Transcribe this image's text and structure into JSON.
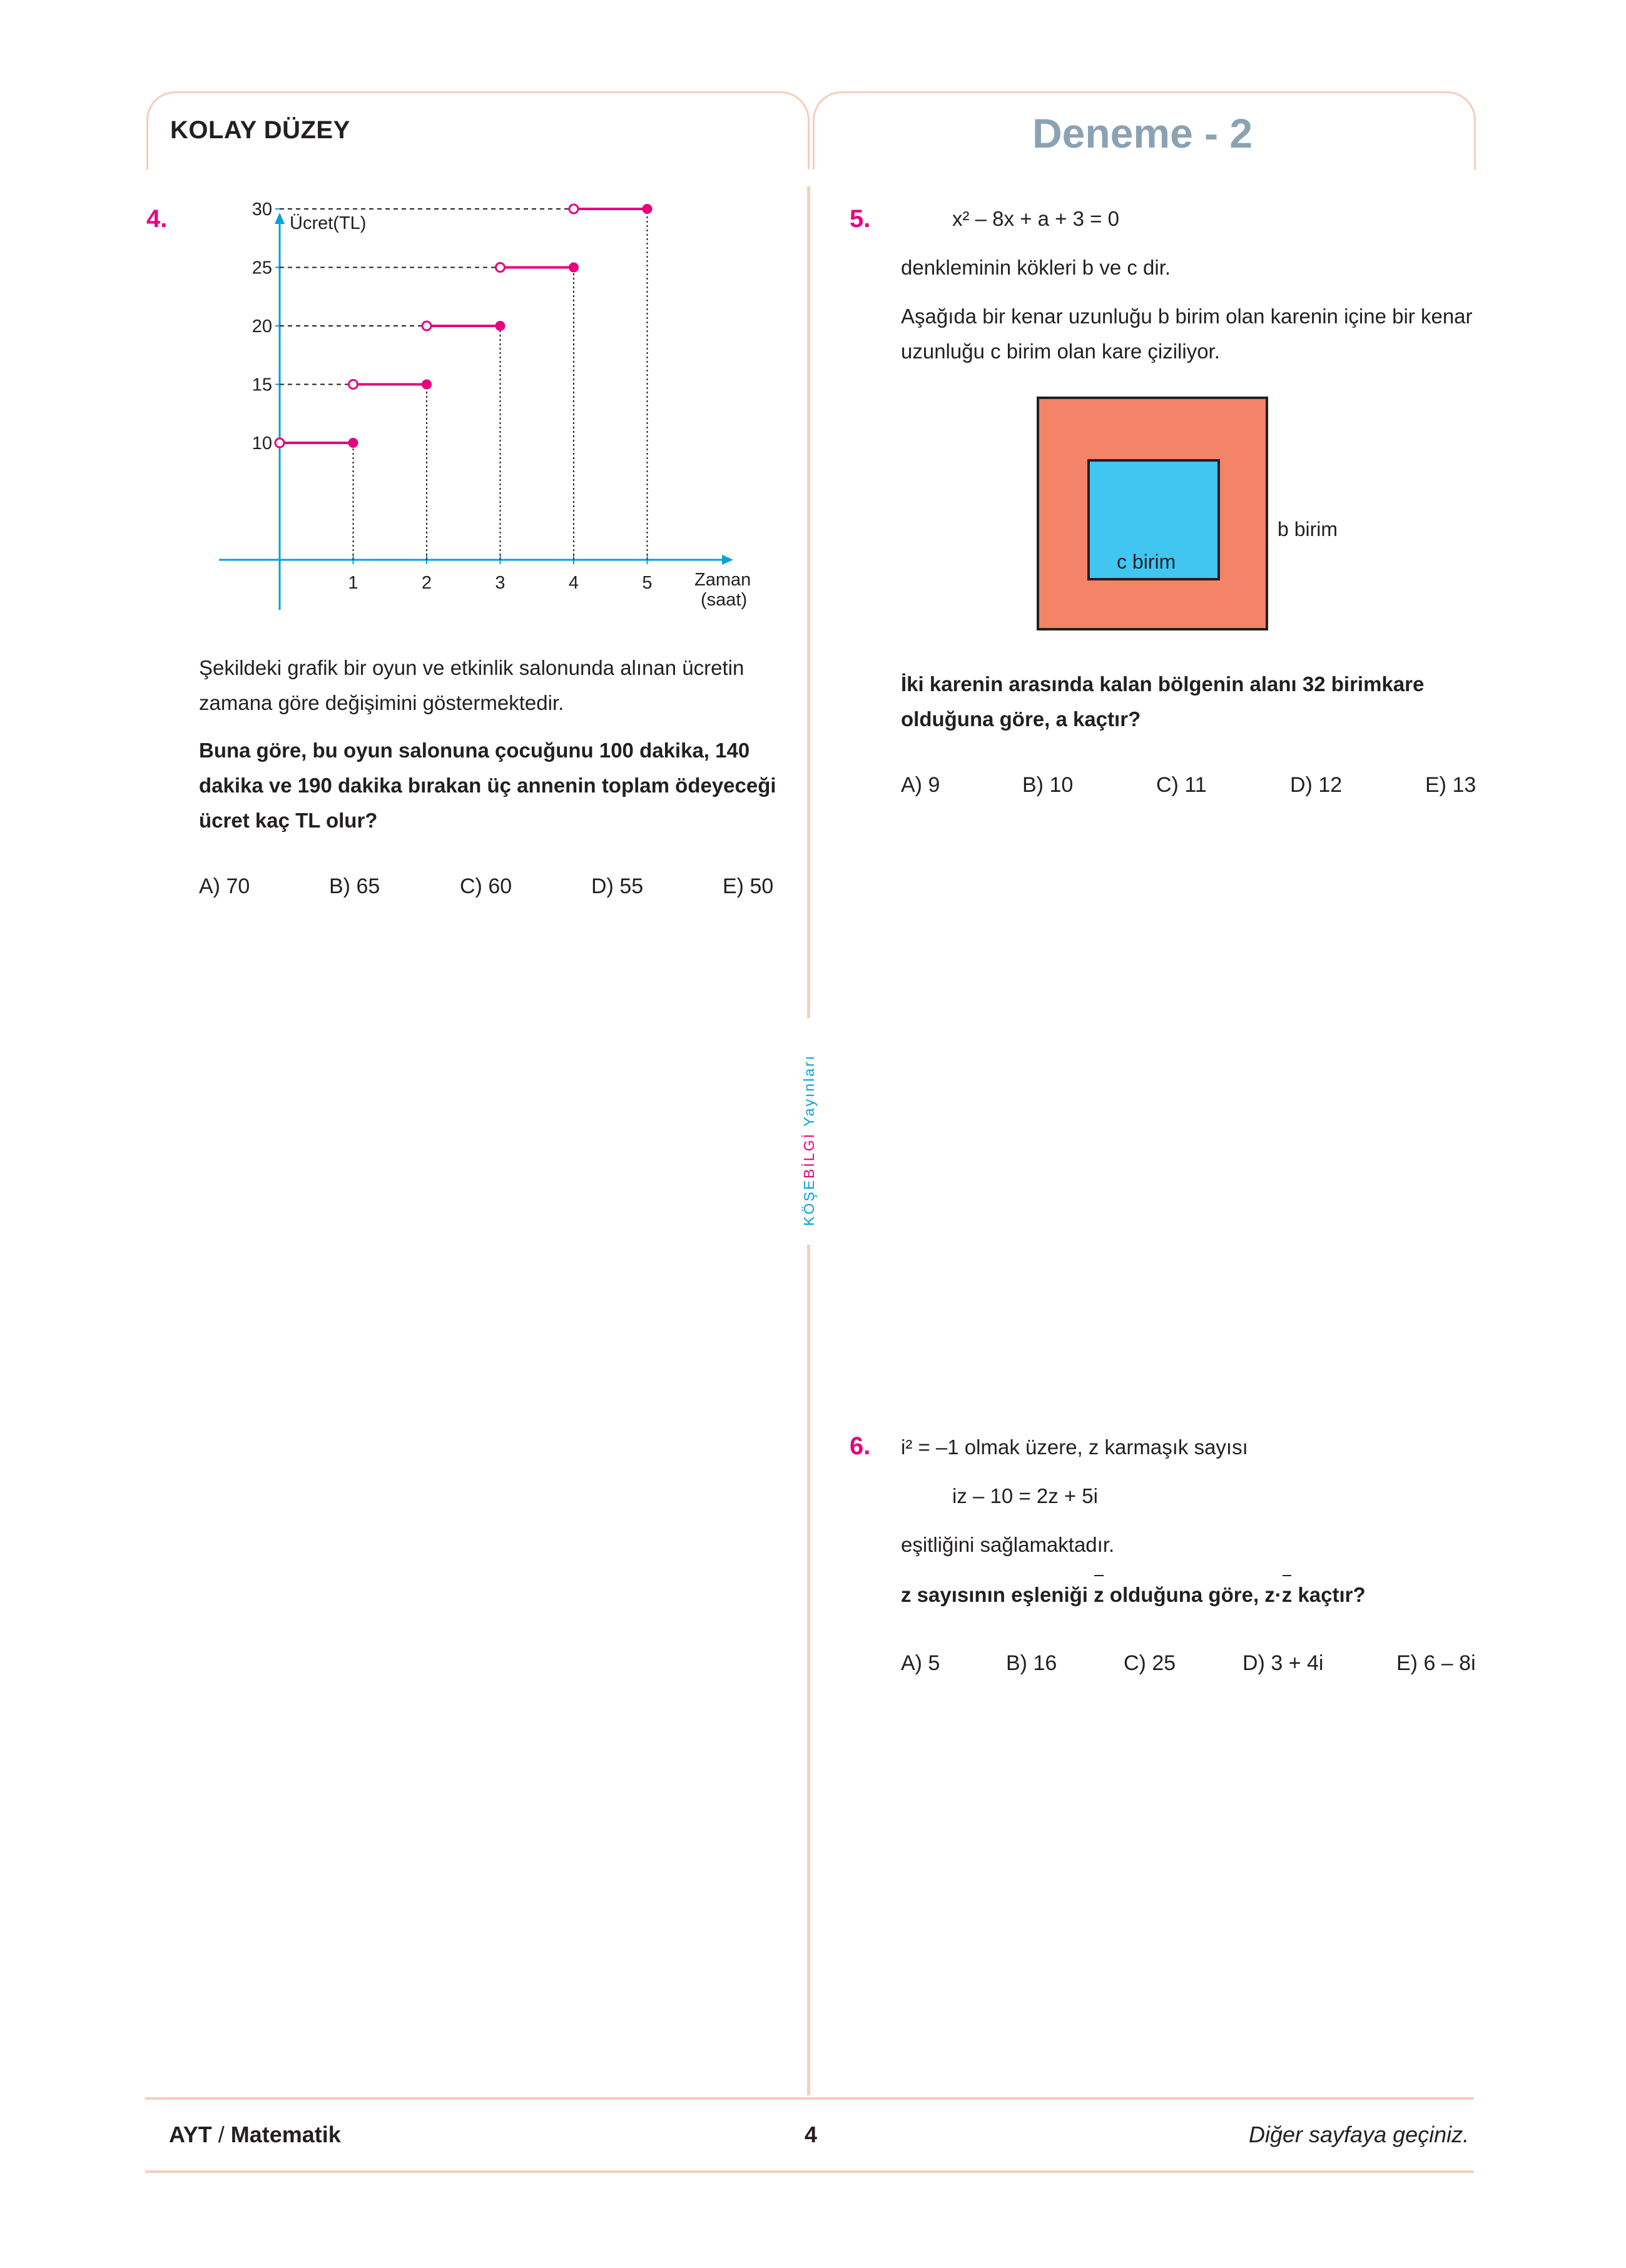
{
  "header": {
    "level": "KOLAY DÜZEY",
    "exam_title": "Deneme - 2"
  },
  "side_brand": {
    "part1": "KÖŞE",
    "part2": "BİLGİ",
    "part3": "Yayınları"
  },
  "q4": {
    "number": "4.",
    "text1": "Şekildeki grafik bir oyun ve etkinlik salonunda alınan ücretin zamana göre değişimini göstermektedir.",
    "question": "Buna göre, bu oyun salonuna çocuğunu 100 dakika, 140 dakika ve 190 dakika bırakan üç annenin toplam ödeyeceği ücret kaç TL olur?",
    "options": [
      "A) 70",
      "B) 65",
      "C) 60",
      "D) 55",
      "E) 50"
    ]
  },
  "chart_data": {
    "type": "line",
    "ylabel": "Ücret(TL)",
    "xlabel_line1": "Zaman",
    "xlabel_line2": "(saat)",
    "x_ticks": [
      "1",
      "2",
      "3",
      "4",
      "5"
    ],
    "y_ticks": [
      "10",
      "15",
      "20",
      "25",
      "30"
    ],
    "xlim": [
      0,
      5.6
    ],
    "ylim": [
      0,
      32
    ],
    "line_color": "#e6007e",
    "axis_color": "#00a0dc",
    "segments": [
      {
        "x_start": 0,
        "x_end": 1,
        "y": 10
      },
      {
        "x_start": 1,
        "x_end": 2,
        "y": 15
      },
      {
        "x_start": 2,
        "x_end": 3,
        "y": 20
      },
      {
        "x_start": 3,
        "x_end": 4,
        "y": 25
      },
      {
        "x_start": 4,
        "x_end": 5,
        "y": 30
      }
    ],
    "start_points": "open",
    "end_points": "closed"
  },
  "q5": {
    "number": "5.",
    "equation": "x² – 8x + a + 3 = 0",
    "text1": "denkleminin kökleri b ve c dir.",
    "text2": "Aşağıda bir kenar uzunluğu b birim olan karenin içine bir kenar uzunluğu c birim olan kare çiziliyor.",
    "outer_label": "b birim",
    "inner_label": "c birim",
    "outer_color": "#f38467",
    "inner_color": "#40c6f1",
    "question": "İki karenin arasında kalan bölgenin alanı 32 birimkare olduğuna göre, a kaçtır?",
    "options": [
      "A) 9",
      "B) 10",
      "C) 11",
      "D) 12",
      "E) 13"
    ]
  },
  "q6": {
    "number": "6.",
    "line1": "i² = –1 olmak üzere, z karmaşık sayısı",
    "equation": "iz – 10 = 2z + 5i",
    "text2": "eşitliğini sağlamaktadır.",
    "q_part1": "z sayısının eşleniği",
    "q_z": "z",
    "q_part2": "olduğuna göre, z",
    "q_dot": "·",
    "q_part3": "kaçtır?",
    "options": [
      "A) 5",
      "B) 16",
      "C) 25",
      "D) 3 + 4i",
      "E) 6 – 8i"
    ]
  },
  "footer": {
    "left_a": "AYT",
    "left_sep": " / ",
    "left_b": "Matematik",
    "page": "4",
    "right": "Diğer sayfaya geçiniz."
  }
}
